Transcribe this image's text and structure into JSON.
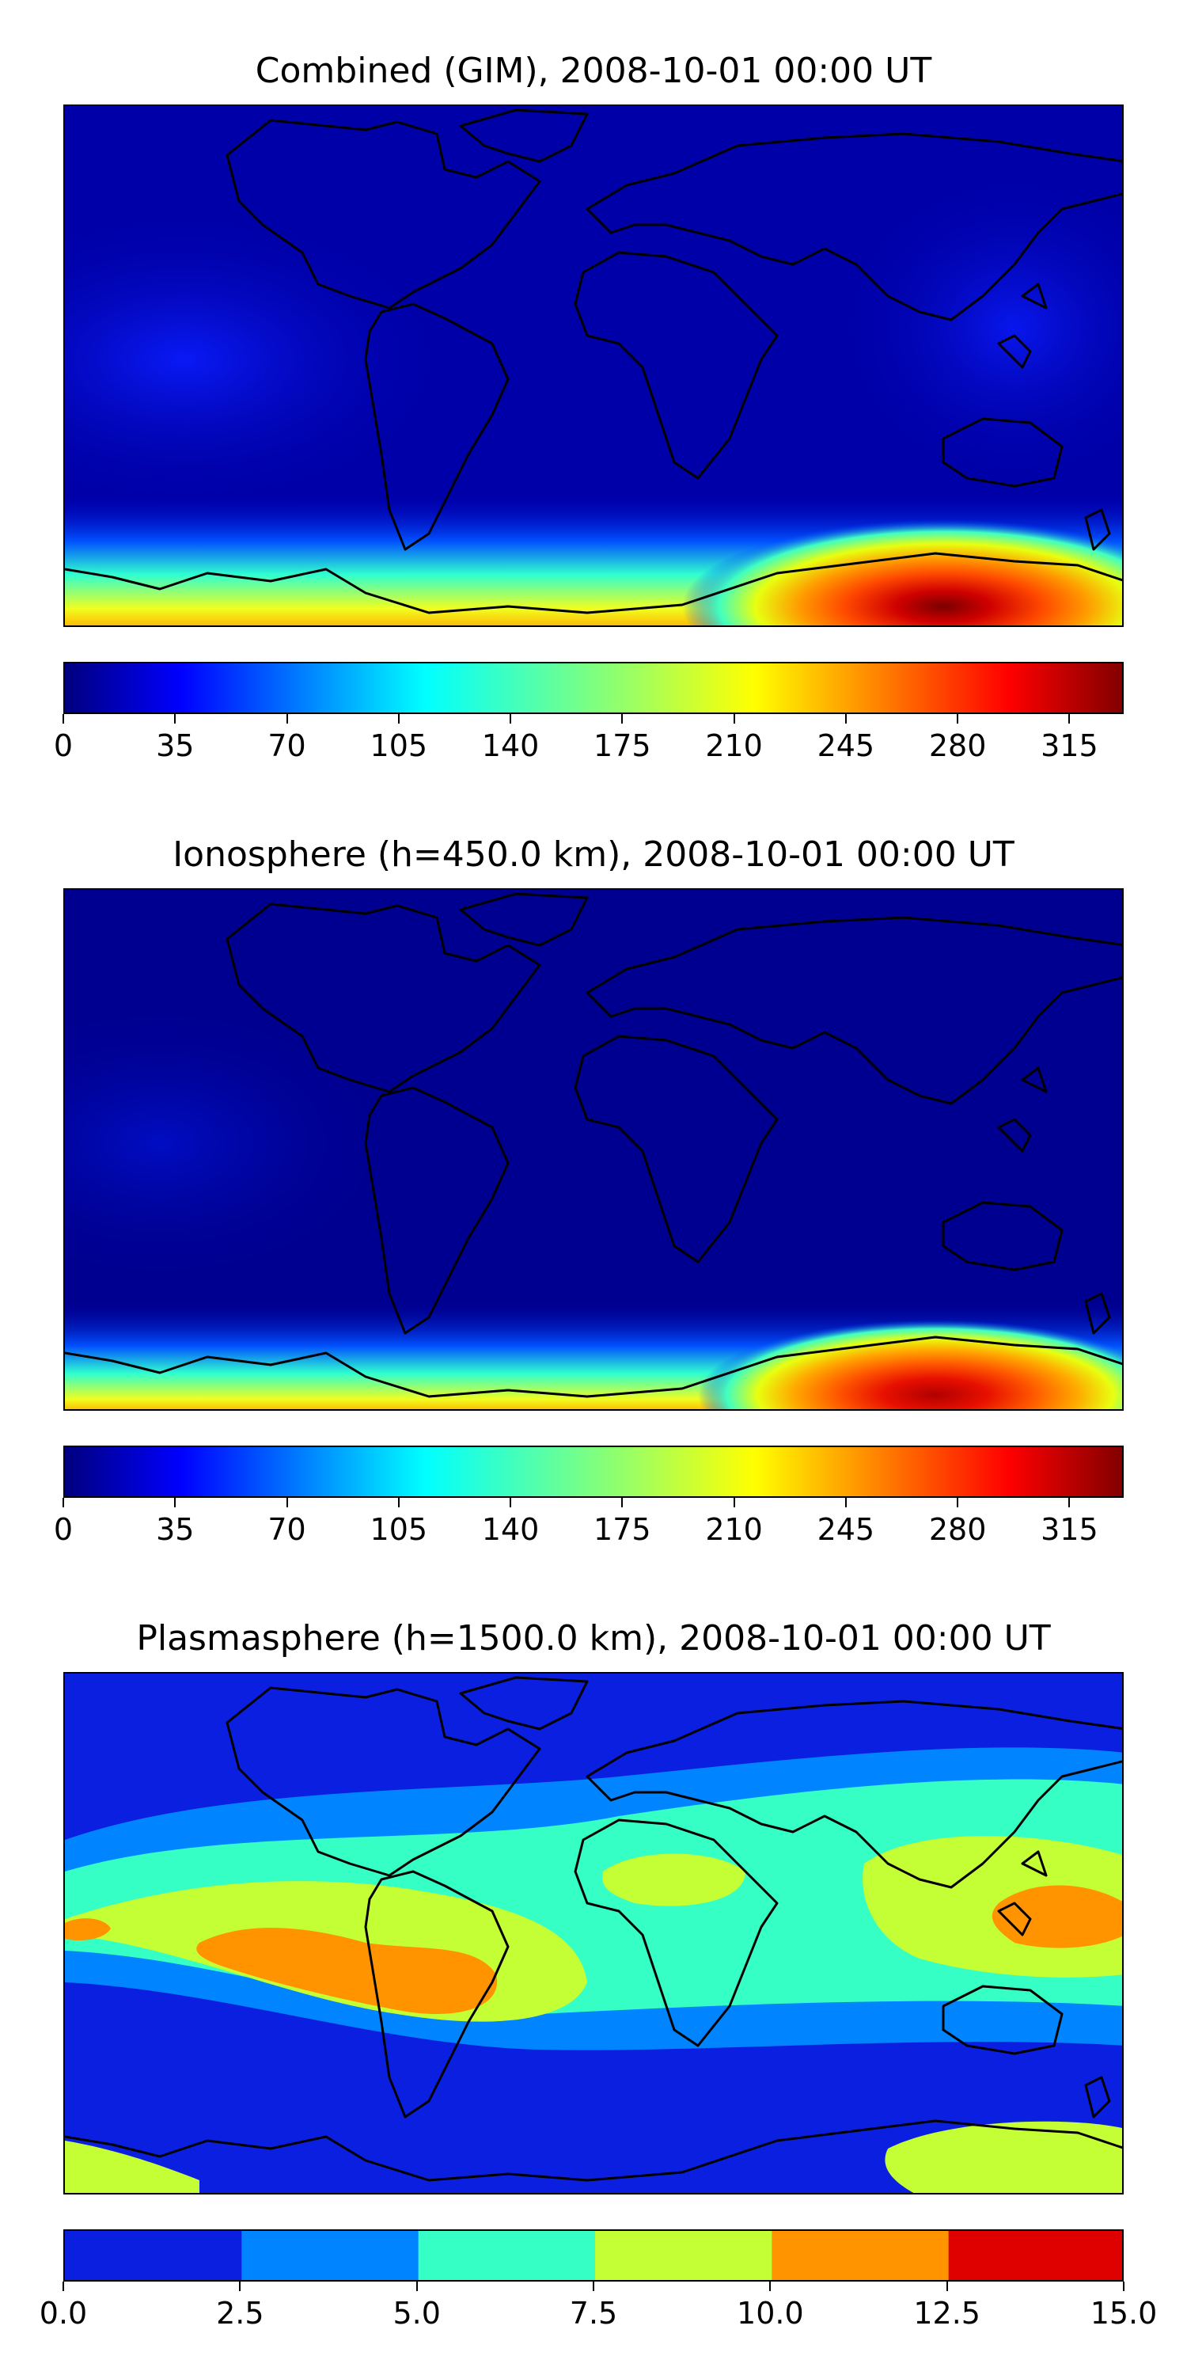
{
  "panels": [
    {
      "title": "Combined (GIM), 2008-10-01 00:00 UT",
      "colormap": "jet",
      "colorbar": {
        "min": 0,
        "max": 332,
        "ticks": [
          "0",
          "35",
          "70",
          "105",
          "140",
          "175",
          "210",
          "245",
          "280",
          "315"
        ],
        "tick_values": [
          0,
          35,
          70,
          105,
          140,
          175,
          210,
          245,
          280,
          315
        ],
        "continuous": true
      }
    },
    {
      "title": "Ionosphere  (h=450.0 km), 2008-10-01 00:00 UT",
      "colormap": "jet",
      "colorbar": {
        "min": 0,
        "max": 332,
        "ticks": [
          "0",
          "35",
          "70",
          "105",
          "140",
          "175",
          "210",
          "245",
          "280",
          "315"
        ],
        "tick_values": [
          0,
          35,
          70,
          105,
          140,
          175,
          210,
          245,
          280,
          315
        ],
        "continuous": true
      }
    },
    {
      "title": "Plasmasphere (h=1500.0 km), 2008-10-01 00:00 UT",
      "colormap": "jet",
      "colorbar": {
        "min": 0,
        "max": 15,
        "ticks": [
          "0.0",
          "2.5",
          "5.0",
          "7.5",
          "10.0",
          "12.5",
          "15.0"
        ],
        "tick_values": [
          0,
          2.5,
          5,
          7.5,
          10,
          12.5,
          15
        ],
        "levels": [
          "#0b1fe0",
          "#0084ff",
          "#35ffc4",
          "#c4ff35",
          "#ff9400",
          "#df0000"
        ],
        "continuous": false
      }
    }
  ],
  "map_colors": {
    "background_low": "#00009a",
    "coastline": "#000000"
  }
}
